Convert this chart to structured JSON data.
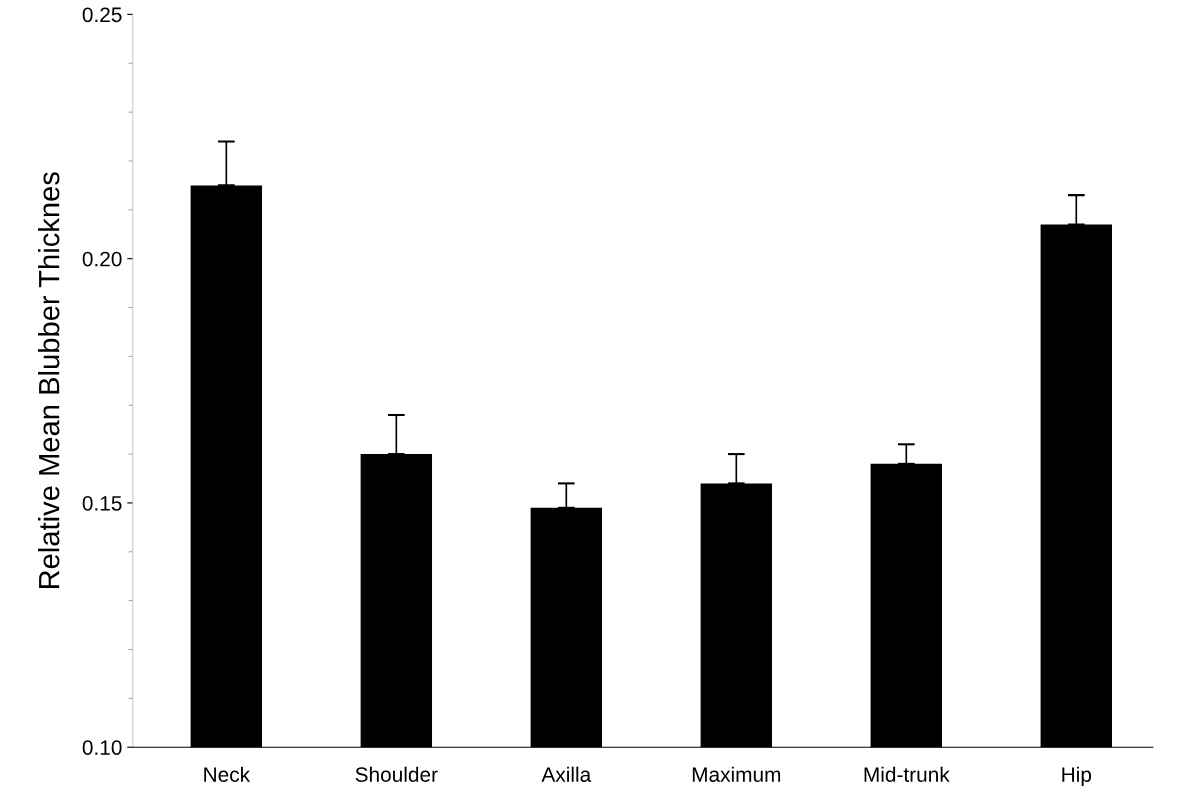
{
  "chart_data": {
    "type": "bar",
    "ylabel": "Relative Mean Blubber Thicknes",
    "categories": [
      "Neck",
      "Shoulder",
      "Axilla",
      "Maximum",
      "Mid-trunk",
      "Hip"
    ],
    "values": [
      0.215,
      0.16,
      0.149,
      0.154,
      0.158,
      0.207
    ],
    "errors": [
      [
        0.215,
        0.224
      ],
      [
        0.16,
        0.168
      ],
      [
        0.149,
        0.154
      ],
      [
        0.154,
        0.16
      ],
      [
        0.158,
        0.162
      ],
      [
        0.207,
        0.213
      ]
    ],
    "color": "#000000",
    "ylim": [
      0.1,
      0.25
    ],
    "yticks": [
      {
        "value": 0.1,
        "label": "0.10"
      },
      {
        "value": 0.15,
        "label": "0.15"
      },
      {
        "value": 0.2,
        "label": "0.20"
      },
      {
        "value": 0.25,
        "label": "0.25"
      }
    ],
    "grid": false
  }
}
